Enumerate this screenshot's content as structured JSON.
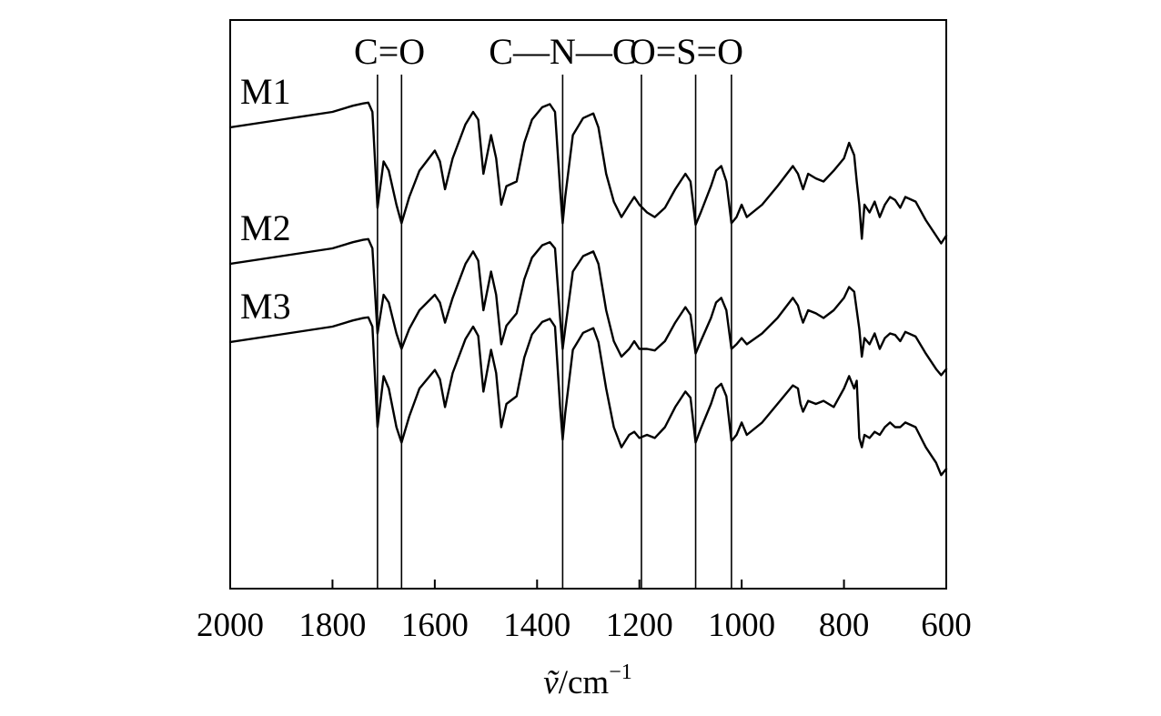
{
  "chart_data": {
    "type": "line",
    "title": "",
    "xlabel": "ṽ/cm⁻¹",
    "xlabel_parts": {
      "symbol": "ṽ",
      "unit": "/cm",
      "exponent": "−1"
    },
    "ylabel": "",
    "xlim": [
      2000,
      600
    ],
    "x_reversed": true,
    "y_offset_stacked": true,
    "grid": false,
    "xticks": [
      2000,
      1800,
      1600,
      1400,
      1200,
      1000,
      800,
      600
    ],
    "xtick_labels": [
      "2000",
      "1800",
      "1600",
      "1400",
      "1200",
      "1000",
      "800",
      "600"
    ],
    "band_markers": [
      1712,
      1665,
      1350,
      1196,
      1090,
      1020
    ],
    "band_groups": [
      {
        "label": "C=O",
        "bands": [
          1712,
          1665
        ]
      },
      {
        "label": "C—N—C",
        "bands": [
          1350
        ]
      },
      {
        "label": "O=S=O",
        "bands": [
          1196,
          1090,
          1020
        ]
      }
    ],
    "series": [
      {
        "name": "M1",
        "x": [
          2000,
          1900,
          1800,
          1760,
          1740,
          1730,
          1722,
          1712,
          1700,
          1690,
          1675,
          1665,
          1650,
          1630,
          1600,
          1590,
          1580,
          1565,
          1540,
          1525,
          1515,
          1505,
          1490,
          1480,
          1470,
          1460,
          1440,
          1425,
          1410,
          1390,
          1375,
          1365,
          1355,
          1350,
          1345,
          1330,
          1310,
          1290,
          1280,
          1265,
          1250,
          1235,
          1220,
          1210,
          1200,
          1185,
          1170,
          1150,
          1130,
          1110,
          1100,
          1090,
          1080,
          1060,
          1050,
          1040,
          1030,
          1020,
          1010,
          1000,
          990,
          960,
          930,
          900,
          890,
          885,
          880,
          870,
          855,
          840,
          820,
          800,
          790,
          780,
          775,
          770,
          765,
          760,
          750,
          740,
          730,
          720,
          710,
          700,
          690,
          680,
          660,
          640,
          620,
          610,
          600
        ],
        "y": [
          0.0,
          0.05,
          0.1,
          0.14,
          0.155,
          0.16,
          0.1,
          -0.52,
          -0.22,
          -0.28,
          -0.5,
          -0.62,
          -0.45,
          -0.28,
          -0.15,
          -0.22,
          -0.4,
          -0.2,
          0.02,
          0.1,
          0.05,
          -0.3,
          -0.05,
          -0.2,
          -0.5,
          -0.38,
          -0.35,
          -0.1,
          0.05,
          0.13,
          0.15,
          0.1,
          -0.4,
          -0.62,
          -0.45,
          -0.05,
          0.06,
          0.09,
          0.0,
          -0.3,
          -0.48,
          -0.58,
          -0.5,
          -0.45,
          -0.5,
          -0.55,
          -0.58,
          -0.52,
          -0.4,
          -0.3,
          -0.35,
          -0.63,
          -0.55,
          -0.38,
          -0.28,
          -0.25,
          -0.35,
          -0.62,
          -0.58,
          -0.5,
          -0.58,
          -0.5,
          -0.38,
          -0.25,
          -0.3,
          -0.35,
          -0.4,
          -0.3,
          -0.33,
          -0.35,
          -0.28,
          -0.2,
          -0.1,
          -0.18,
          -0.35,
          -0.5,
          -0.72,
          -0.5,
          -0.55,
          -0.48,
          -0.58,
          -0.5,
          -0.45,
          -0.47,
          -0.52,
          -0.45,
          -0.48,
          -0.6,
          -0.7,
          -0.75,
          -0.7
        ]
      },
      {
        "name": "M2",
        "x": [
          2000,
          1900,
          1800,
          1760,
          1740,
          1730,
          1722,
          1712,
          1700,
          1690,
          1675,
          1665,
          1650,
          1630,
          1600,
          1590,
          1580,
          1565,
          1540,
          1525,
          1515,
          1505,
          1490,
          1480,
          1470,
          1460,
          1440,
          1425,
          1410,
          1390,
          1375,
          1365,
          1355,
          1350,
          1345,
          1330,
          1310,
          1290,
          1280,
          1265,
          1250,
          1235,
          1220,
          1210,
          1200,
          1185,
          1170,
          1150,
          1130,
          1110,
          1100,
          1090,
          1080,
          1060,
          1050,
          1040,
          1030,
          1020,
          1010,
          1000,
          990,
          960,
          930,
          900,
          890,
          885,
          880,
          870,
          855,
          840,
          820,
          800,
          790,
          780,
          775,
          770,
          765,
          760,
          750,
          740,
          730,
          720,
          710,
          700,
          690,
          680,
          660,
          640,
          620,
          610,
          600
        ],
        "y": [
          0.0,
          0.05,
          0.1,
          0.14,
          0.155,
          0.16,
          0.1,
          -0.45,
          -0.2,
          -0.25,
          -0.45,
          -0.55,
          -0.42,
          -0.3,
          -0.2,
          -0.25,
          -0.38,
          -0.22,
          0.0,
          0.08,
          0.02,
          -0.3,
          -0.05,
          -0.2,
          -0.52,
          -0.4,
          -0.32,
          -0.1,
          0.04,
          0.12,
          0.14,
          0.1,
          -0.35,
          -0.55,
          -0.42,
          -0.05,
          0.05,
          0.08,
          0.0,
          -0.3,
          -0.5,
          -0.6,
          -0.55,
          -0.5,
          -0.55,
          -0.55,
          -0.56,
          -0.5,
          -0.38,
          -0.28,
          -0.33,
          -0.58,
          -0.5,
          -0.35,
          -0.25,
          -0.22,
          -0.3,
          -0.55,
          -0.52,
          -0.48,
          -0.52,
          -0.45,
          -0.35,
          -0.22,
          -0.27,
          -0.33,
          -0.38,
          -0.3,
          -0.32,
          -0.35,
          -0.3,
          -0.22,
          -0.15,
          -0.18,
          -0.3,
          -0.42,
          -0.6,
          -0.48,
          -0.52,
          -0.45,
          -0.55,
          -0.48,
          -0.45,
          -0.46,
          -0.5,
          -0.44,
          -0.47,
          -0.58,
          -0.68,
          -0.72,
          -0.68
        ]
      },
      {
        "name": "M3",
        "x": [
          2000,
          1900,
          1800,
          1760,
          1740,
          1730,
          1722,
          1712,
          1700,
          1690,
          1675,
          1665,
          1650,
          1630,
          1600,
          1590,
          1580,
          1565,
          1540,
          1525,
          1515,
          1505,
          1490,
          1480,
          1470,
          1460,
          1440,
          1425,
          1410,
          1390,
          1375,
          1365,
          1355,
          1350,
          1345,
          1330,
          1310,
          1290,
          1280,
          1265,
          1250,
          1235,
          1220,
          1210,
          1200,
          1185,
          1170,
          1150,
          1130,
          1110,
          1100,
          1090,
          1080,
          1060,
          1050,
          1040,
          1030,
          1020,
          1010,
          1000,
          990,
          960,
          930,
          900,
          890,
          885,
          880,
          870,
          855,
          840,
          820,
          800,
          790,
          780,
          775,
          770,
          765,
          760,
          750,
          740,
          730,
          720,
          710,
          700,
          690,
          680,
          660,
          640,
          620,
          610,
          600
        ],
        "y": [
          0.0,
          0.05,
          0.1,
          0.14,
          0.155,
          0.16,
          0.1,
          -0.55,
          -0.22,
          -0.3,
          -0.55,
          -0.65,
          -0.48,
          -0.3,
          -0.18,
          -0.24,
          -0.42,
          -0.2,
          0.02,
          0.1,
          0.04,
          -0.32,
          -0.05,
          -0.2,
          -0.55,
          -0.4,
          -0.35,
          -0.1,
          0.05,
          0.13,
          0.15,
          0.1,
          -0.42,
          -0.63,
          -0.46,
          -0.05,
          0.06,
          0.09,
          0.0,
          -0.3,
          -0.55,
          -0.68,
          -0.6,
          -0.58,
          -0.62,
          -0.6,
          -0.62,
          -0.55,
          -0.42,
          -0.32,
          -0.36,
          -0.65,
          -0.56,
          -0.4,
          -0.3,
          -0.27,
          -0.35,
          -0.64,
          -0.6,
          -0.52,
          -0.6,
          -0.52,
          -0.4,
          -0.28,
          -0.3,
          -0.4,
          -0.45,
          -0.38,
          -0.4,
          -0.38,
          -0.42,
          -0.3,
          -0.22,
          -0.3,
          -0.25,
          -0.62,
          -0.68,
          -0.6,
          -0.62,
          -0.58,
          -0.6,
          -0.55,
          -0.52,
          -0.55,
          -0.55,
          -0.52,
          -0.55,
          -0.68,
          -0.78,
          -0.86,
          -0.82
        ]
      }
    ]
  }
}
